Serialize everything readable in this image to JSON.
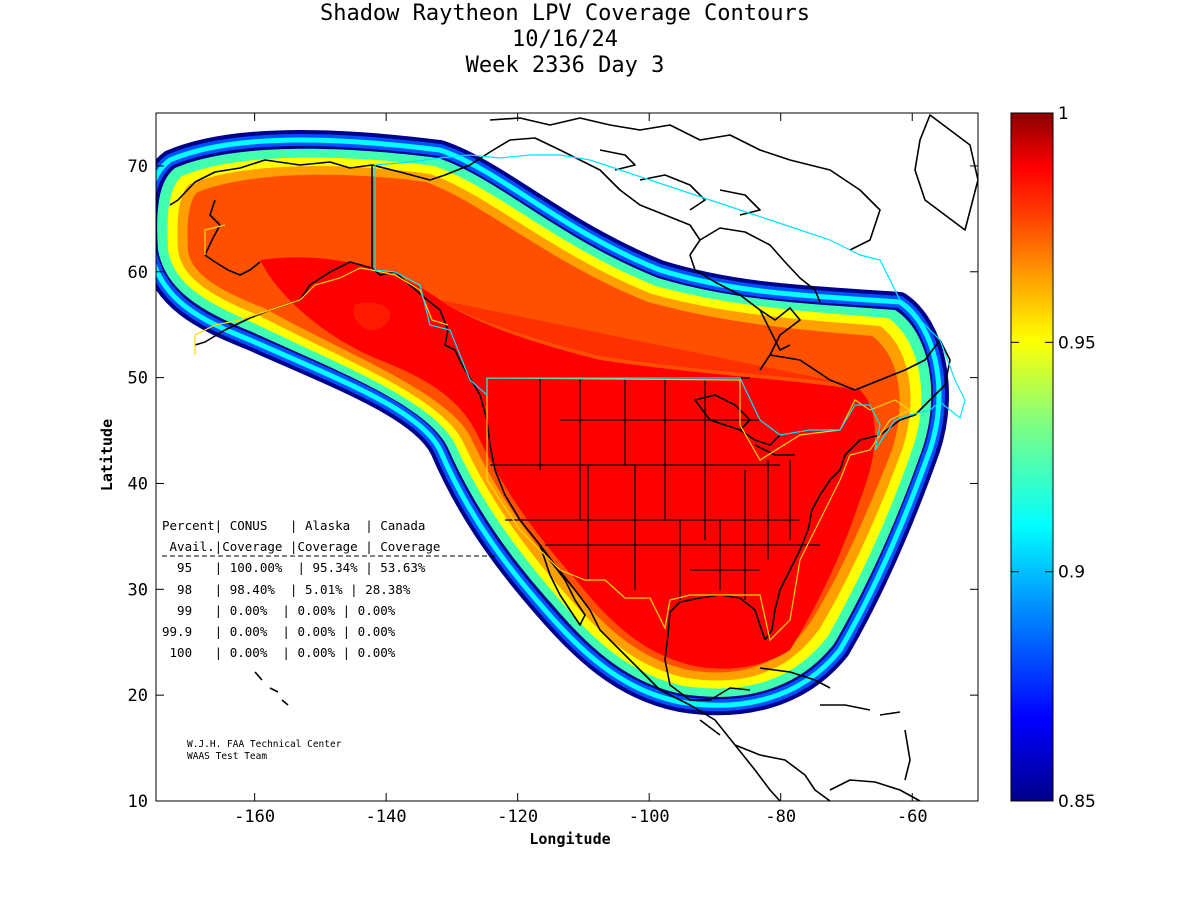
{
  "title": {
    "line1": "Shadow Raytheon LPV Coverage Contours",
    "line2": "10/16/24",
    "line3": "Week 2336 Day 3"
  },
  "axes": {
    "xlabel": "Longitude",
    "ylabel": "Latitude",
    "xlim": [
      -175,
      -50
    ],
    "ylim": [
      10,
      75
    ],
    "xticks": [
      "-160",
      "-140",
      "-120",
      "-100",
      "-80",
      "-60"
    ],
    "yticks": [
      "10",
      "20",
      "30",
      "40",
      "50",
      "60",
      "70"
    ]
  },
  "colorbar": {
    "range": [
      0.85,
      1
    ],
    "ticks": [
      "1",
      "0.95",
      "0.9",
      "0.85"
    ]
  },
  "table": {
    "header1": "Percent| CONUS   | Alaska  | Canada",
    "header2": " Avail.|Coverage |Coverage | Coverage",
    "rows": [
      "  95   | 100.00%  | 95.34% | 53.63%",
      "  98   | 98.40%  | 5.01% | 28.38%",
      "  99   | 0.00%  | 0.00% | 0.00%",
      "99.9   | 0.00%  | 0.00% | 0.00%",
      " 100   | 0.00%  | 0.00% | 0.00%"
    ]
  },
  "credit": {
    "line1": "W.J.H. FAA Technical Center",
    "line2": "WAAS Test Team"
  },
  "colors": {
    "accent_max": "#8b0000",
    "high": "#ff0000",
    "mid": "#ffff00",
    "low": "#00ffff",
    "min": "#00008b",
    "service_boundary": "#ffd700",
    "canada_boundary": "#00e5ff"
  }
}
